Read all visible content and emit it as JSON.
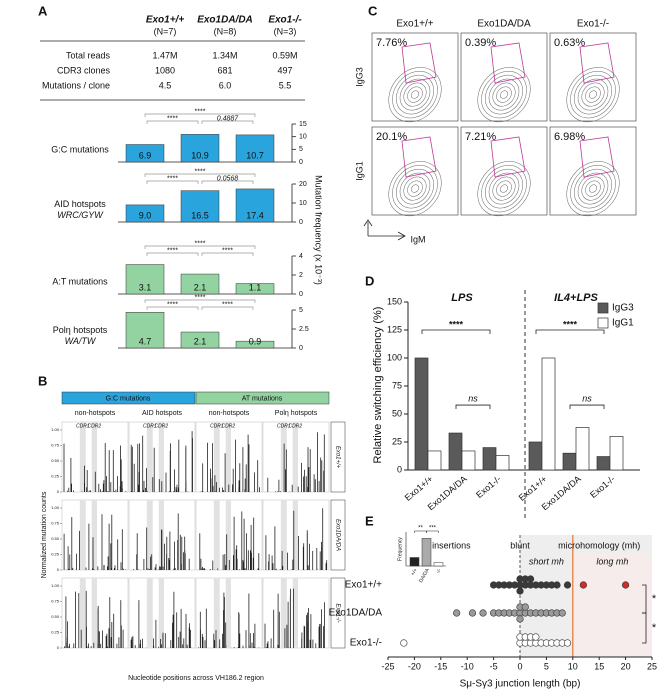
{
  "panel_labels": [
    "A",
    "B",
    "C",
    "D",
    "E"
  ],
  "table": {
    "columns": [
      {
        "name": "Exo1+/+",
        "n": "(N=7)"
      },
      {
        "name": "Exo1DA/DA",
        "n": "(N=8)"
      },
      {
        "name": "Exo1-/-",
        "n": "(N=3)"
      }
    ],
    "rows": [
      [
        "Total reads",
        "1.47M",
        "1.34M",
        "0.59M"
      ],
      [
        "CDR3 clones",
        "1080",
        "681",
        "497"
      ],
      [
        "Mutations / clone",
        "4.5",
        "6.0",
        "5.5"
      ]
    ]
  },
  "panel_a": {
    "y_label": "Mutation frequency (x 10⁻³)"
  },
  "chart_data": [
    {
      "type": "bar",
      "title": [
        "G:C mutations"
      ],
      "values": [
        6.9,
        10.9,
        10.7
      ],
      "color": "#2aa4dd",
      "ylim": [
        0,
        15
      ],
      "yticks": [
        0,
        5,
        10,
        15
      ],
      "annotations": [
        "****",
        "****",
        "0.4887"
      ]
    },
    {
      "type": "bar",
      "title": [
        "AID hotspots",
        "WRC/GYW"
      ],
      "values": [
        9.0,
        16.5,
        17.4
      ],
      "value_labels": [
        "9.0",
        "16.5",
        "17.4"
      ],
      "color": "#2aa4dd",
      "ylim": [
        0,
        20
      ],
      "yticks": [
        0,
        10,
        20
      ],
      "annotations": [
        "****",
        "****",
        "0.0568"
      ]
    },
    {
      "type": "bar",
      "title": [
        "A:T mutations"
      ],
      "values": [
        3.1,
        2.1,
        1.1
      ],
      "color": "#93d3a2",
      "ylim": [
        0,
        4
      ],
      "yticks": [
        0,
        2,
        4
      ],
      "annotations": [
        "****",
        "****",
        "****"
      ]
    },
    {
      "type": "bar",
      "title": [
        "Polη hotspots",
        "WA/TW"
      ],
      "values": [
        4.7,
        2.1,
        0.9
      ],
      "color": "#93d3a2",
      "ylim": [
        0,
        5
      ],
      "yticks": [
        0,
        2.5,
        5
      ],
      "annotations": [
        "****",
        "****",
        "****"
      ]
    },
    {
      "type": "grouped_bar",
      "groups": [
        "LPS",
        "IL4+LPS"
      ],
      "categories": [
        "Exo1+/+",
        "Exo1DA/DA",
        "Exo1-/-",
        "Exo1+/+",
        "Exo1DA/DA",
        "Exo1-/-"
      ],
      "series": [
        {
          "name": "IgG3",
          "color": "#5a5a5a",
          "values": [
            100,
            33,
            20,
            25,
            15,
            12
          ]
        },
        {
          "name": "IgG1",
          "color": "#ffffff",
          "values": [
            17,
            17,
            13,
            100,
            38,
            30
          ]
        }
      ],
      "ylim": [
        0,
        150
      ],
      "yticks": [
        0,
        25,
        50,
        75,
        100,
        125,
        150
      ],
      "y_label": "Relative switching efficiency (%)",
      "annotations": [
        "****",
        "ns",
        "****",
        "ns"
      ],
      "legend": "upper right"
    },
    {
      "type": "dot_strip",
      "categories": [
        "Exo1+/+",
        "Exo1DA/DA",
        "Exo1-/-"
      ],
      "values": [
        [
          -5,
          -4,
          -3,
          -2,
          -1,
          0,
          0,
          0,
          1,
          1,
          2,
          2,
          3,
          4,
          5,
          6,
          7,
          9,
          12,
          20
        ],
        [
          -12,
          -9,
          -7,
          -5,
          -4,
          -3,
          -2,
          -1,
          0,
          0,
          0,
          1,
          1,
          2,
          3,
          4,
          5,
          6,
          7,
          8
        ],
        [
          -22,
          0,
          0,
          1,
          1,
          2,
          2,
          3,
          3,
          4,
          5,
          6,
          7,
          8,
          9
        ]
      ],
      "colors": [
        "#3a3a3a",
        "#9a9a9a",
        "#ffffff"
      ],
      "long_color": "#d42a2a",
      "mh_split": 10,
      "xlim": [
        -25,
        25
      ],
      "xticks": [
        -25,
        -20,
        -15,
        -10,
        -5,
        0,
        5,
        10,
        15,
        20,
        25
      ],
      "x_label": "Sμ-Sγ3 junction length (bp)",
      "region_labels": [
        "insertions",
        "blunt",
        "microhomology (mh)"
      ],
      "short_label": "short mh",
      "long_label": "long mh",
      "significance": [
        "*",
        "*"
      ]
    },
    {
      "type": "bar",
      "y_label": "Frequency",
      "categories": [
        "+/+",
        "DA/DA",
        "-/-"
      ],
      "values": [
        0.2,
        0.65,
        0.08
      ],
      "colors": [
        "#222222",
        "#aaaaaa",
        "#ffffff"
      ],
      "ylim": [
        0,
        0.8
      ],
      "annotations": [
        "**",
        "***"
      ]
    }
  ],
  "spectra": {
    "headers": [
      {
        "text": "G:C mutations",
        "color": "#2aa4dd"
      },
      {
        "text": "AT mutations",
        "color": "#93d3a2"
      }
    ],
    "subheaders": [
      "non-hotspots",
      "AID hotspots",
      "non-hotspots",
      "Polη hotspots"
    ],
    "regions": [
      "CDR1",
      "CDR2"
    ],
    "rows": [
      "Exo1+/+",
      "Exo1DA/DA",
      "Exo1-/-"
    ],
    "yticks": [
      0,
      0.25,
      {
        "value": 0.5,
        "label": "0.50"
      },
      0.75,
      {
        "value": 1,
        "label": "1.00"
      }
    ],
    "y_label": "Normalized mutation counts",
    "x_label": "Nucleotide positions across VH186.2 region"
  },
  "flow": {
    "columns": [
      "Exo1+/+",
      "Exo1DA/DA",
      "Exo1-/-"
    ],
    "rows": [
      "IgG3",
      "IgG1"
    ],
    "x_label": "IgM",
    "percents": [
      [
        "7.76%",
        "0.39%",
        "0.63%"
      ],
      [
        "20.1%",
        "7.21%",
        "6.98%"
      ]
    ],
    "gate_color": "#c0399a"
  }
}
